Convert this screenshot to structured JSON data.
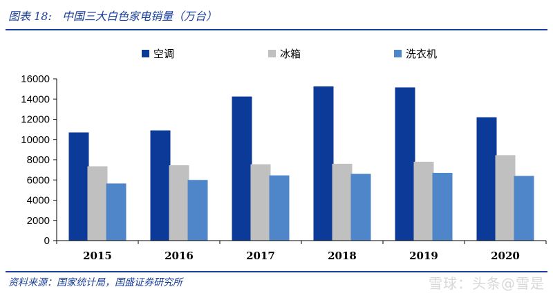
{
  "header": {
    "label": "图表 18:",
    "title": "中国三大白色家电销量（万台）"
  },
  "source": "资料来源：国家统计局，国盛证券研究所",
  "watermark": "雪球：头条@雪是",
  "colors": {
    "accent": "#1a3f9a",
    "series": [
      "#0b3a99",
      "#c0c0c0",
      "#4f86c9"
    ]
  },
  "chart_data": {
    "type": "bar",
    "categories": [
      "2015",
      "2016",
      "2017",
      "2018",
      "2019",
      "2020"
    ],
    "series": [
      {
        "name": "空调",
        "values": [
          10700,
          10900,
          14250,
          15250,
          15150,
          12200
        ]
      },
      {
        "name": "冰箱",
        "values": [
          7350,
          7450,
          7550,
          7600,
          7800,
          8450
        ]
      },
      {
        "name": "洗衣机",
        "values": [
          5650,
          6000,
          6450,
          6600,
          6700,
          6400
        ]
      }
    ],
    "yticks": [
      "0",
      "2000",
      "4000",
      "6000",
      "8000",
      "10000",
      "12000",
      "14000",
      "16000"
    ],
    "ylim": [
      0,
      16000
    ],
    "grid": false,
    "legend": "top"
  }
}
